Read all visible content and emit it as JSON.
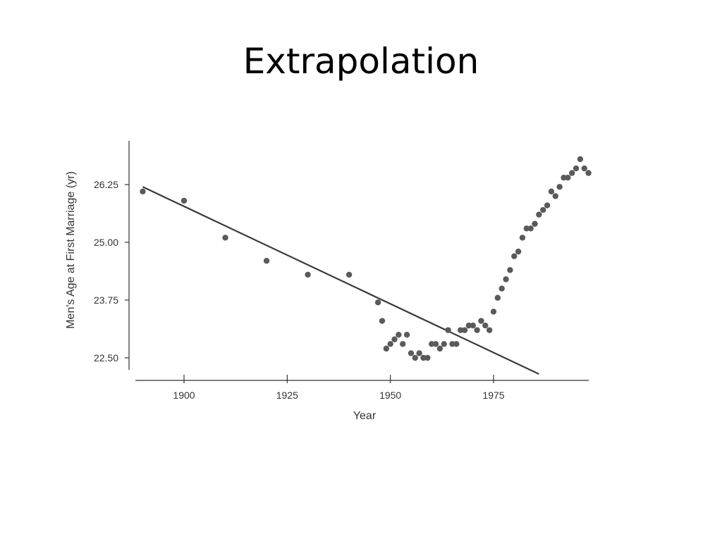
{
  "slide": {
    "title": "Extrapolation"
  },
  "chart_data": {
    "type": "scatter",
    "title": "",
    "xlabel": "Year",
    "ylabel": "Men's Age at First Marriage (yr)",
    "xlim": [
      1890,
      2000
    ],
    "ylim": [
      22.1,
      26.8
    ],
    "x_ticks": [
      {
        "value": 1900,
        "label": "1900"
      },
      {
        "value": 1925,
        "label": "1925"
      },
      {
        "value": 1950,
        "label": "1950"
      },
      {
        "value": 1975,
        "label": "1975"
      }
    ],
    "y_ticks": [
      {
        "value": 22.5,
        "label": "22.50"
      },
      {
        "value": 23.75,
        "label": "23.75"
      },
      {
        "value": 25.0,
        "label": "25.00"
      },
      {
        "value": 26.25,
        "label": "26.25"
      }
    ],
    "trend_line": {
      "x": [
        1890,
        1986
      ],
      "y": [
        26.2,
        22.15
      ]
    },
    "colors": {
      "points": "#5a5a5a",
      "line": "#3a3a3a",
      "axis": "#333333"
    },
    "series": [
      {
        "points": [
          [
            1890,
            26.1
          ],
          [
            1900,
            25.9
          ],
          [
            1910,
            25.1
          ],
          [
            1920,
            24.6
          ],
          [
            1930,
            24.3
          ],
          [
            1940,
            24.3
          ],
          [
            1947,
            23.7
          ],
          [
            1948,
            23.3
          ],
          [
            1949,
            22.7
          ],
          [
            1950,
            22.8
          ],
          [
            1951,
            22.9
          ],
          [
            1952,
            23.0
          ],
          [
            1953,
            22.8
          ],
          [
            1954,
            23.0
          ],
          [
            1955,
            22.6
          ],
          [
            1956,
            22.5
          ],
          [
            1957,
            22.6
          ],
          [
            1958,
            22.5
          ],
          [
            1959,
            22.5
          ],
          [
            1960,
            22.8
          ],
          [
            1961,
            22.8
          ],
          [
            1962,
            22.7
          ],
          [
            1963,
            22.8
          ],
          [
            1964,
            23.1
          ],
          [
            1965,
            22.8
          ],
          [
            1966,
            22.8
          ],
          [
            1967,
            23.1
          ],
          [
            1968,
            23.1
          ],
          [
            1969,
            23.2
          ],
          [
            1970,
            23.2
          ],
          [
            1971,
            23.1
          ],
          [
            1972,
            23.3
          ],
          [
            1973,
            23.2
          ],
          [
            1974,
            23.1
          ],
          [
            1975,
            23.5
          ],
          [
            1976,
            23.8
          ],
          [
            1977,
            24.0
          ],
          [
            1978,
            24.2
          ],
          [
            1979,
            24.4
          ],
          [
            1980,
            24.7
          ],
          [
            1981,
            24.8
          ],
          [
            1982,
            25.1
          ],
          [
            1983,
            25.3
          ],
          [
            1984,
            25.3
          ],
          [
            1985,
            25.4
          ],
          [
            1986,
            25.6
          ],
          [
            1987,
            25.7
          ],
          [
            1988,
            25.8
          ],
          [
            1989,
            26.1
          ],
          [
            1990,
            26.0
          ],
          [
            1991,
            26.2
          ],
          [
            1992,
            26.4
          ],
          [
            1993,
            26.4
          ],
          [
            1994,
            26.5
          ],
          [
            1995,
            26.6
          ],
          [
            1996,
            26.8
          ],
          [
            1997,
            26.6
          ],
          [
            1998,
            26.5
          ]
        ]
      }
    ]
  }
}
